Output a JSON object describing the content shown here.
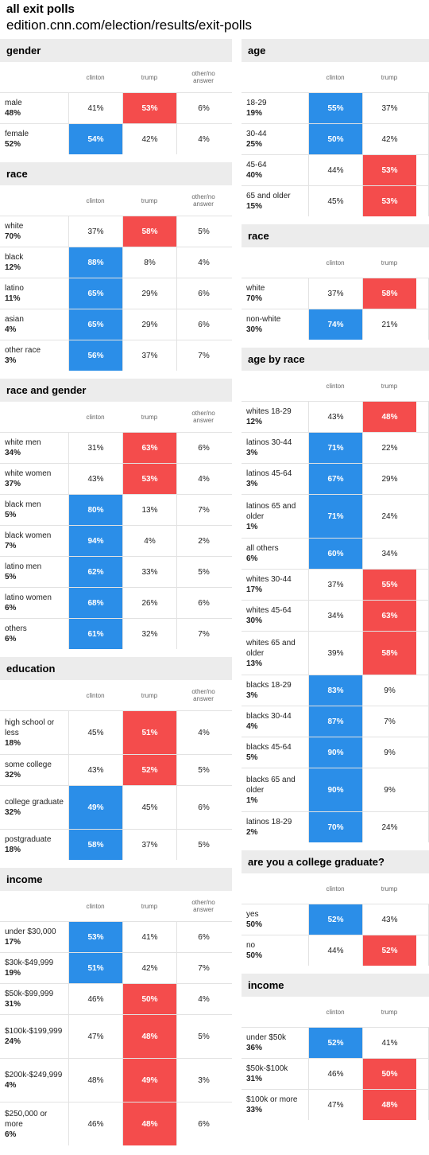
{
  "header": {
    "title": "all exit polls",
    "source": "edition.cnn.com/election/results/exit-polls"
  },
  "colors": {
    "clinton": "#2b8ee8",
    "trump": "#f44c4c"
  },
  "chart_data": [
    {
      "type": "table",
      "title": "gender",
      "columns": [
        "clinton",
        "trump",
        "other/no answer"
      ],
      "rows": [
        {
          "group": "male",
          "share": "48%",
          "values": [
            "41%",
            "53%",
            "6%"
          ],
          "winner": 1
        },
        {
          "group": "female",
          "share": "52%",
          "values": [
            "54%",
            "42%",
            "4%"
          ],
          "winner": 0
        }
      ]
    },
    {
      "type": "table",
      "title": "race",
      "columns": [
        "clinton",
        "trump",
        "other/no answer"
      ],
      "rows": [
        {
          "group": "white",
          "share": "70%",
          "values": [
            "37%",
            "58%",
            "5%"
          ],
          "winner": 1
        },
        {
          "group": "black",
          "share": "12%",
          "values": [
            "88%",
            "8%",
            "4%"
          ],
          "winner": 0
        },
        {
          "group": "latino",
          "share": "11%",
          "values": [
            "65%",
            "29%",
            "6%"
          ],
          "winner": 0
        },
        {
          "group": "asian",
          "share": "4%",
          "values": [
            "65%",
            "29%",
            "6%"
          ],
          "winner": 0
        },
        {
          "group": "other race",
          "share": "3%",
          "values": [
            "56%",
            "37%",
            "7%"
          ],
          "winner": 0
        }
      ]
    },
    {
      "type": "table",
      "title": "race and gender",
      "columns": [
        "clinton",
        "trump",
        "other/no answer"
      ],
      "rows": [
        {
          "group": "white men",
          "share": "34%",
          "values": [
            "31%",
            "63%",
            "6%"
          ],
          "winner": 1
        },
        {
          "group": "white women",
          "share": "37%",
          "values": [
            "43%",
            "53%",
            "4%"
          ],
          "winner": 1
        },
        {
          "group": "black men",
          "share": "5%",
          "values": [
            "80%",
            "13%",
            "7%"
          ],
          "winner": 0
        },
        {
          "group": "black women",
          "share": "7%",
          "values": [
            "94%",
            "4%",
            "2%"
          ],
          "winner": 0
        },
        {
          "group": "latino men",
          "share": "5%",
          "values": [
            "62%",
            "33%",
            "5%"
          ],
          "winner": 0
        },
        {
          "group": "latino women",
          "share": "6%",
          "values": [
            "68%",
            "26%",
            "6%"
          ],
          "winner": 0
        },
        {
          "group": "others",
          "share": "6%",
          "values": [
            "61%",
            "32%",
            "7%"
          ],
          "winner": 0
        }
      ]
    },
    {
      "type": "table",
      "title": "education",
      "columns": [
        "clinton",
        "trump",
        "other/no answer"
      ],
      "rows": [
        {
          "group": "high school or less",
          "share": "18%",
          "values": [
            "45%",
            "51%",
            "4%"
          ],
          "winner": 1
        },
        {
          "group": "some college",
          "share": "32%",
          "values": [
            "43%",
            "52%",
            "5%"
          ],
          "winner": 1
        },
        {
          "group": "college graduate",
          "share": "32%",
          "values": [
            "49%",
            "45%",
            "6%"
          ],
          "winner": 0
        },
        {
          "group": "postgraduate",
          "share": "18%",
          "values": [
            "58%",
            "37%",
            "5%"
          ],
          "winner": 0
        }
      ]
    },
    {
      "type": "table",
      "title": "income",
      "columns": [
        "clinton",
        "trump",
        "other/no answer"
      ],
      "rows": [
        {
          "group": "under $30,000",
          "share": "17%",
          "values": [
            "53%",
            "41%",
            "6%"
          ],
          "winner": 0
        },
        {
          "group": "$30k-$49,999",
          "share": "19%",
          "values": [
            "51%",
            "42%",
            "7%"
          ],
          "winner": 0
        },
        {
          "group": "$50k-$99,999",
          "share": "31%",
          "values": [
            "46%",
            "50%",
            "4%"
          ],
          "winner": 1
        },
        {
          "group": "$100k-$199,999",
          "share": "24%",
          "values": [
            "47%",
            "48%",
            "5%"
          ],
          "winner": 1
        },
        {
          "group": "$200k-$249,999",
          "share": "4%",
          "values": [
            "48%",
            "49%",
            "3%"
          ],
          "winner": 1
        },
        {
          "group": "$250,000 or more",
          "share": "6%",
          "values": [
            "46%",
            "48%",
            "6%"
          ],
          "winner": 1
        }
      ]
    },
    {
      "type": "table",
      "title": "age",
      "columns": [
        "clinton",
        "trump"
      ],
      "rows": [
        {
          "group": "18-29",
          "share": "19%",
          "values": [
            "55%",
            "37%"
          ],
          "winner": 0
        },
        {
          "group": "30-44",
          "share": "25%",
          "values": [
            "50%",
            "42%"
          ],
          "winner": 0
        },
        {
          "group": "45-64",
          "share": "40%",
          "values": [
            "44%",
            "53%"
          ],
          "winner": 1
        },
        {
          "group": "65 and older",
          "share": "15%",
          "values": [
            "45%",
            "53%"
          ],
          "winner": 1
        }
      ]
    },
    {
      "type": "table",
      "title": "race",
      "columns": [
        "clinton",
        "trump"
      ],
      "rows": [
        {
          "group": "white",
          "share": "70%",
          "values": [
            "37%",
            "58%"
          ],
          "winner": 1
        },
        {
          "group": "non-white",
          "share": "30%",
          "values": [
            "74%",
            "21%"
          ],
          "winner": 0
        }
      ]
    },
    {
      "type": "table",
      "title": "age by race",
      "columns": [
        "clinton",
        "trump"
      ],
      "rows": [
        {
          "group": "whites 18-29",
          "share": "12%",
          "values": [
            "43%",
            "48%"
          ],
          "winner": 1
        },
        {
          "group": "latinos 30-44",
          "share": "3%",
          "values": [
            "71%",
            "22%"
          ],
          "winner": 0
        },
        {
          "group": "latinos 45-64",
          "share": "3%",
          "values": [
            "67%",
            "29%"
          ],
          "winner": 0
        },
        {
          "group": "latinos 65 and older",
          "share": "1%",
          "values": [
            "71%",
            "24%"
          ],
          "winner": 0
        },
        {
          "group": "all others",
          "share": "6%",
          "values": [
            "60%",
            "34%"
          ],
          "winner": 0
        },
        {
          "group": "whites 30-44",
          "share": "17%",
          "values": [
            "37%",
            "55%"
          ],
          "winner": 1
        },
        {
          "group": "whites 45-64",
          "share": "30%",
          "values": [
            "34%",
            "63%"
          ],
          "winner": 1
        },
        {
          "group": "whites 65 and older",
          "share": "13%",
          "values": [
            "39%",
            "58%"
          ],
          "winner": 1
        },
        {
          "group": "blacks 18-29",
          "share": "3%",
          "values": [
            "83%",
            "9%"
          ],
          "winner": 0
        },
        {
          "group": "blacks 30-44",
          "share": "4%",
          "values": [
            "87%",
            "7%"
          ],
          "winner": 0
        },
        {
          "group": "blacks 45-64",
          "share": "5%",
          "values": [
            "90%",
            "9%"
          ],
          "winner": 0
        },
        {
          "group": "blacks 65 and older",
          "share": "1%",
          "values": [
            "90%",
            "9%"
          ],
          "winner": 0
        },
        {
          "group": "latinos 18-29",
          "share": "2%",
          "values": [
            "70%",
            "24%"
          ],
          "winner": 0
        }
      ]
    },
    {
      "type": "table",
      "title": "are you a college graduate?",
      "columns": [
        "clinton",
        "trump"
      ],
      "rows": [
        {
          "group": "yes",
          "share": "50%",
          "values": [
            "52%",
            "43%"
          ],
          "winner": 0
        },
        {
          "group": "no",
          "share": "50%",
          "values": [
            "44%",
            "52%"
          ],
          "winner": 1
        }
      ]
    },
    {
      "type": "table",
      "title": "income",
      "columns": [
        "clinton",
        "trump"
      ],
      "rows": [
        {
          "group": "under $50k",
          "share": "36%",
          "values": [
            "52%",
            "41%"
          ],
          "winner": 0
        },
        {
          "group": "$50k-$100k",
          "share": "31%",
          "values": [
            "46%",
            "50%"
          ],
          "winner": 1
        },
        {
          "group": "$100k or more",
          "share": "33%",
          "values": [
            "47%",
            "48%"
          ],
          "winner": 1
        }
      ]
    }
  ]
}
